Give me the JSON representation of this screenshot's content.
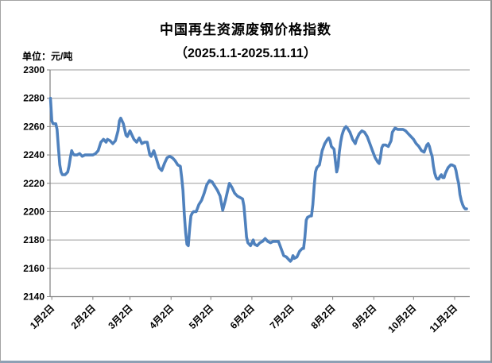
{
  "chart_data": {
    "type": "line",
    "title": "中国再生资源废钢价格指数",
    "subtitle": "（2025.1.1-2025.11.11）",
    "unit_label": "单位：元/吨",
    "ylabel": "元/吨",
    "ylim": [
      2140,
      2300
    ],
    "y_tick_step": 20,
    "y_ticks": [
      2300,
      2280,
      2260,
      2240,
      2220,
      2200,
      2180,
      2160,
      2140
    ],
    "x_range_days": [
      0,
      314
    ],
    "x_ticks": [
      {
        "label": "1月2日",
        "day": 1
      },
      {
        "label": "2月2日",
        "day": 32
      },
      {
        "label": "3月2日",
        "day": 60
      },
      {
        "label": "4月2日",
        "day": 91
      },
      {
        "label": "5月2日",
        "day": 121
      },
      {
        "label": "6月2日",
        "day": 152
      },
      {
        "label": "7月2日",
        "day": 182
      },
      {
        "label": "8月2日",
        "day": 213
      },
      {
        "label": "9月2日",
        "day": 244
      },
      {
        "label": "10月2日",
        "day": 274
      },
      {
        "label": "11月2日",
        "day": 305
      }
    ],
    "grid": true,
    "legend": "none",
    "line_color": "#4F81BD",
    "grid_color": "#9b9b9b",
    "axis_color": "#7f7f7f",
    "series": [
      {
        "points": [
          [
            0,
            2280
          ],
          [
            1,
            2264
          ],
          [
            2,
            2262
          ],
          [
            3,
            2262
          ],
          [
            4,
            2262
          ],
          [
            5,
            2258
          ],
          [
            6,
            2245
          ],
          [
            7,
            2233
          ],
          [
            8,
            2228
          ],
          [
            9,
            2226
          ],
          [
            10,
            2226
          ],
          [
            11,
            2226
          ],
          [
            12,
            2227
          ],
          [
            13,
            2228
          ],
          [
            14,
            2232
          ],
          [
            15,
            2238
          ],
          [
            16,
            2243
          ],
          [
            17,
            2241
          ],
          [
            18,
            2240
          ],
          [
            20,
            2240
          ],
          [
            22,
            2241
          ],
          [
            24,
            2239
          ],
          [
            26,
            2240
          ],
          [
            28,
            2240
          ],
          [
            30,
            2240
          ],
          [
            32,
            2240
          ],
          [
            34,
            2241
          ],
          [
            36,
            2243
          ],
          [
            38,
            2249
          ],
          [
            40,
            2251
          ],
          [
            42,
            2249
          ],
          [
            43,
            2251
          ],
          [
            45,
            2250
          ],
          [
            47,
            2248
          ],
          [
            49,
            2250
          ],
          [
            51,
            2257
          ],
          [
            52,
            2264
          ],
          [
            53,
            2266
          ],
          [
            55,
            2262
          ],
          [
            57,
            2254
          ],
          [
            58,
            2253
          ],
          [
            60,
            2257
          ],
          [
            61,
            2255
          ],
          [
            63,
            2251
          ],
          [
            65,
            2249
          ],
          [
            67,
            2252
          ],
          [
            69,
            2248
          ],
          [
            71,
            2249
          ],
          [
            73,
            2249
          ],
          [
            75,
            2240
          ],
          [
            76,
            2239
          ],
          [
            78,
            2243
          ],
          [
            80,
            2237
          ],
          [
            82,
            2231
          ],
          [
            84,
            2229
          ],
          [
            86,
            2234
          ],
          [
            88,
            2238
          ],
          [
            90,
            2239
          ],
          [
            92,
            2238
          ],
          [
            94,
            2236
          ],
          [
            96,
            2233
          ],
          [
            98,
            2232
          ],
          [
            99,
            2224
          ],
          [
            100,
            2215
          ],
          [
            101,
            2198
          ],
          [
            102,
            2185
          ],
          [
            103,
            2177
          ],
          [
            104,
            2176
          ],
          [
            105,
            2188
          ],
          [
            106,
            2197
          ],
          [
            107,
            2199
          ],
          [
            108,
            2200
          ],
          [
            110,
            2200
          ],
          [
            112,
            2205
          ],
          [
            114,
            2208
          ],
          [
            116,
            2213
          ],
          [
            118,
            2219
          ],
          [
            120,
            2222
          ],
          [
            122,
            2221
          ],
          [
            124,
            2218
          ],
          [
            126,
            2215
          ],
          [
            128,
            2211
          ],
          [
            130,
            2201
          ],
          [
            132,
            2208
          ],
          [
            134,
            2216
          ],
          [
            135,
            2220
          ],
          [
            137,
            2217
          ],
          [
            139,
            2213
          ],
          [
            141,
            2211
          ],
          [
            143,
            2210
          ],
          [
            145,
            2209
          ],
          [
            146,
            2204
          ],
          [
            147,
            2193
          ],
          [
            148,
            2182
          ],
          [
            149,
            2178
          ],
          [
            150,
            2177
          ],
          [
            151,
            2176
          ],
          [
            153,
            2180
          ],
          [
            154,
            2177
          ],
          [
            156,
            2176
          ],
          [
            158,
            2178
          ],
          [
            160,
            2179
          ],
          [
            162,
            2181
          ],
          [
            164,
            2179
          ],
          [
            166,
            2178
          ],
          [
            168,
            2179
          ],
          [
            170,
            2179
          ],
          [
            172,
            2179
          ],
          [
            174,
            2174
          ],
          [
            176,
            2169
          ],
          [
            178,
            2168
          ],
          [
            180,
            2166
          ],
          [
            181,
            2165
          ],
          [
            182,
            2166
          ],
          [
            183,
            2169
          ],
          [
            184,
            2167
          ],
          [
            186,
            2168
          ],
          [
            188,
            2172
          ],
          [
            190,
            2174
          ],
          [
            191,
            2174
          ],
          [
            192,
            2182
          ],
          [
            193,
            2194
          ],
          [
            194,
            2196
          ],
          [
            196,
            2197
          ],
          [
            197,
            2197
          ],
          [
            198,
            2205
          ],
          [
            199,
            2218
          ],
          [
            200,
            2228
          ],
          [
            201,
            2231
          ],
          [
            202,
            2232
          ],
          [
            203,
            2233
          ],
          [
            204,
            2238
          ],
          [
            205,
            2243
          ],
          [
            207,
            2248
          ],
          [
            209,
            2251
          ],
          [
            210,
            2252
          ],
          [
            211,
            2250
          ],
          [
            212,
            2246
          ],
          [
            214,
            2244
          ],
          [
            215,
            2236
          ],
          [
            216,
            2228
          ],
          [
            217,
            2232
          ],
          [
            218,
            2242
          ],
          [
            219,
            2249
          ],
          [
            220,
            2254
          ],
          [
            221,
            2257
          ],
          [
            222,
            2259
          ],
          [
            223,
            2260
          ],
          [
            224,
            2259
          ],
          [
            226,
            2256
          ],
          [
            228,
            2251
          ],
          [
            230,
            2248
          ],
          [
            231,
            2251
          ],
          [
            233,
            2255
          ],
          [
            235,
            2257
          ],
          [
            237,
            2256
          ],
          [
            239,
            2253
          ],
          [
            241,
            2248
          ],
          [
            243,
            2243
          ],
          [
            245,
            2238
          ],
          [
            247,
            2235
          ],
          [
            248,
            2234
          ],
          [
            249,
            2238
          ],
          [
            250,
            2245
          ],
          [
            251,
            2247
          ],
          [
            253,
            2247
          ],
          [
            255,
            2246
          ],
          [
            257,
            2250
          ],
          [
            258,
            2256
          ],
          [
            260,
            2259
          ],
          [
            262,
            2258
          ],
          [
            264,
            2258
          ],
          [
            266,
            2258
          ],
          [
            268,
            2257
          ],
          [
            270,
            2255
          ],
          [
            272,
            2253
          ],
          [
            274,
            2251
          ],
          [
            276,
            2248
          ],
          [
            278,
            2246
          ],
          [
            280,
            2243
          ],
          [
            282,
            2242
          ],
          [
            284,
            2247
          ],
          [
            285,
            2248
          ],
          [
            286,
            2246
          ],
          [
            287,
            2242
          ],
          [
            288,
            2239
          ],
          [
            289,
            2232
          ],
          [
            290,
            2227
          ],
          [
            291,
            2224
          ],
          [
            292,
            2223
          ],
          [
            293,
            2223
          ],
          [
            294,
            2225
          ],
          [
            295,
            2226
          ],
          [
            296,
            2224
          ],
          [
            297,
            2224
          ],
          [
            298,
            2227
          ],
          [
            300,
            2231
          ],
          [
            302,
            2233
          ],
          [
            303,
            2233
          ],
          [
            305,
            2232
          ],
          [
            306,
            2229
          ],
          [
            307,
            2224
          ],
          [
            308,
            2220
          ],
          [
            309,
            2212
          ],
          [
            310,
            2208
          ],
          [
            311,
            2205
          ],
          [
            312,
            2203
          ],
          [
            313,
            2202
          ],
          [
            314,
            2202
          ]
        ]
      }
    ]
  }
}
